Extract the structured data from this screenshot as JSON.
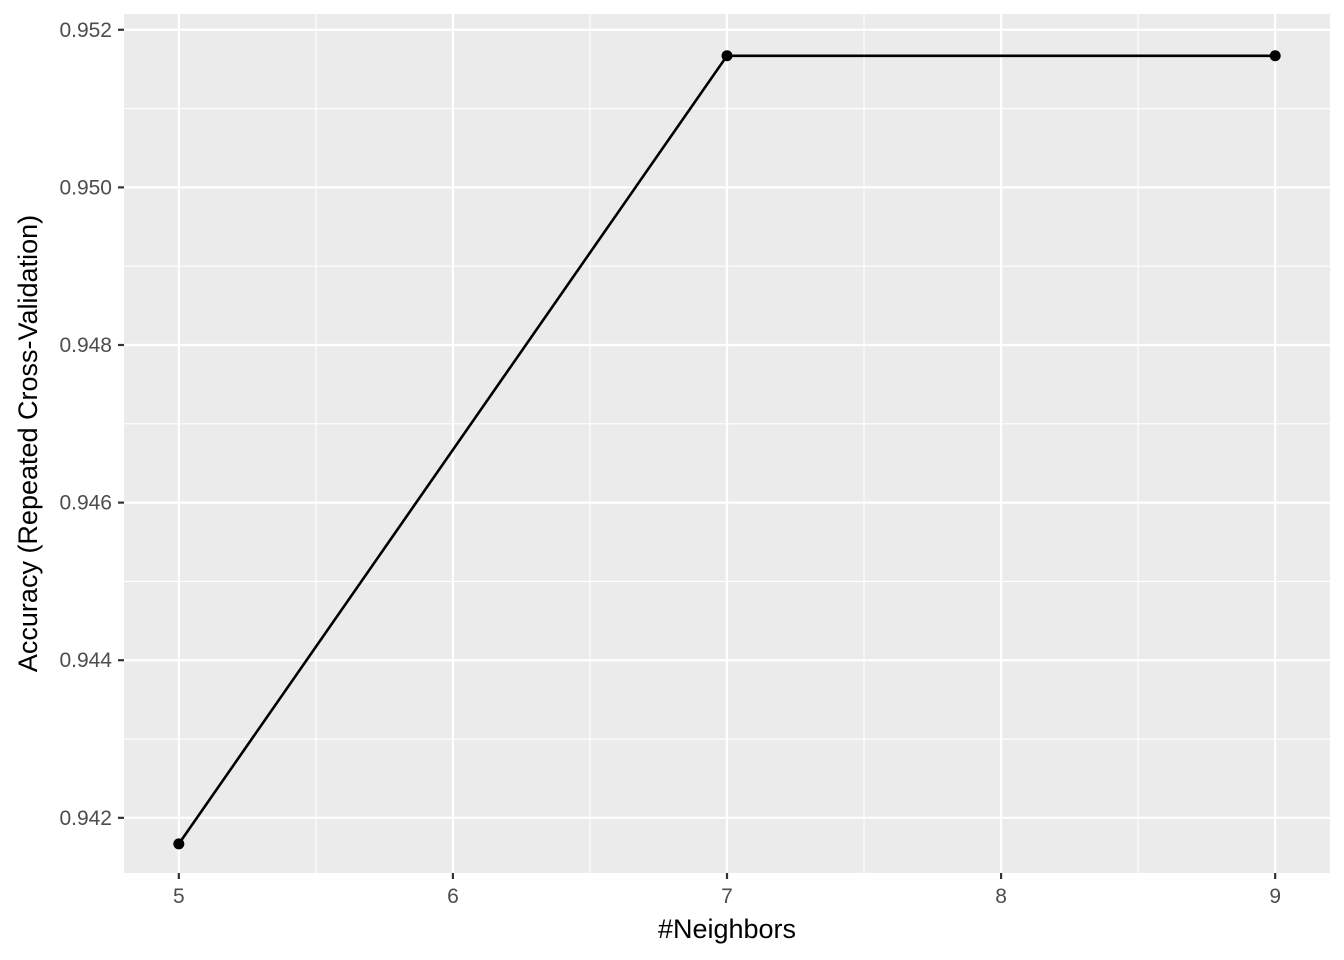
{
  "chart_data": {
    "type": "line",
    "title": "",
    "xlabel": "#Neighbors",
    "ylabel": "Accuracy (Repeated Cross-Validation)",
    "x": [
      5,
      7,
      9
    ],
    "y": [
      0.94167,
      0.95167,
      0.95167
    ],
    "xlim": [
      4.8,
      9.2
    ],
    "ylim": [
      0.9413,
      0.9522
    ],
    "x_major_ticks": [
      5,
      6,
      7,
      8,
      9
    ],
    "x_tick_labels": [
      "5",
      "6",
      "7",
      "8",
      "9"
    ],
    "x_minor_ticks": [
      5.5,
      6.5,
      7.5,
      8.5
    ],
    "y_major_ticks": [
      0.942,
      0.944,
      0.946,
      0.948,
      0.95,
      0.952
    ],
    "y_tick_labels": [
      "0.942",
      "0.944",
      "0.946",
      "0.948",
      "0.950",
      "0.952"
    ],
    "y_minor_ticks": [
      0.943,
      0.945,
      0.947,
      0.949,
      0.951
    ],
    "grid": true,
    "legend": "none",
    "colors": {
      "panel_background": "#ebebeb",
      "grid": "#ffffff",
      "line": "#000000",
      "points": "#000000",
      "tick_labels": "#4d4d4d"
    }
  }
}
